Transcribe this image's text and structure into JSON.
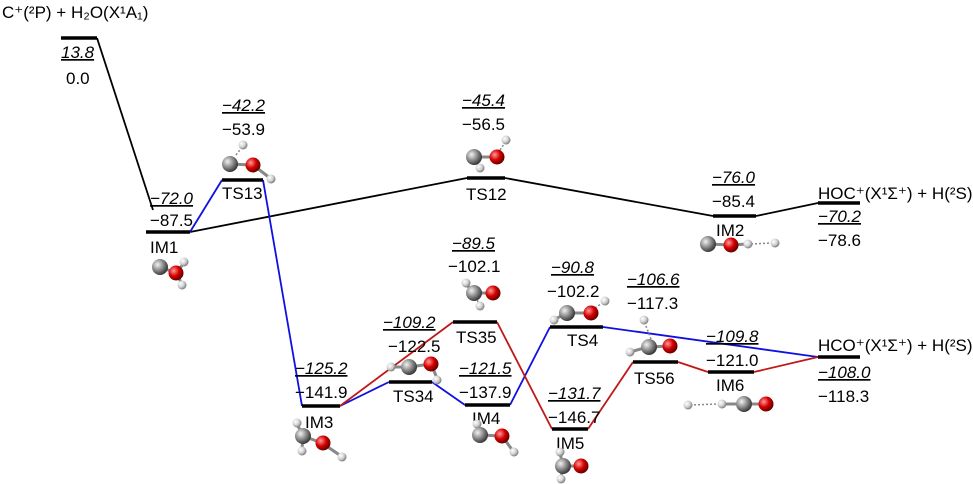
{
  "diagram": {
    "reactants_label": "C⁺(²P) + H₂O(X¹A₁)",
    "product_hoc_label": "HOC⁺(X¹Σ⁺) + H(²S)",
    "product_hco_label": "HCO⁺(X¹Σ⁺) + H(²S)",
    "species": [
      {
        "id": "reactants",
        "name": "",
        "upper": "13.8",
        "lower": "0.0"
      },
      {
        "id": "IM1",
        "name": "IM1",
        "upper": "−72.0",
        "lower": "−87.5"
      },
      {
        "id": "TS13",
        "name": "TS13",
        "upper": "−42.2",
        "lower": "−53.9"
      },
      {
        "id": "TS12",
        "name": "TS12",
        "upper": "−45.4",
        "lower": "−56.5"
      },
      {
        "id": "IM2",
        "name": "IM2",
        "upper": "−76.0",
        "lower": "−85.4"
      },
      {
        "id": "HOC",
        "name": "",
        "upper": "−70.2",
        "lower": "−78.6"
      },
      {
        "id": "IM3",
        "name": "IM3",
        "upper": "−125.2",
        "lower": "−141.9"
      },
      {
        "id": "TS34",
        "name": "TS34",
        "upper": "−109.2",
        "lower": "−122.5"
      },
      {
        "id": "TS35",
        "name": "TS35",
        "upper": "−89.5",
        "lower": "−102.1"
      },
      {
        "id": "IM4",
        "name": "IM4",
        "upper": "−121.5",
        "lower": "−137.9"
      },
      {
        "id": "IM5",
        "name": "IM5",
        "upper": "−131.7",
        "lower": "−146.7"
      },
      {
        "id": "TS4",
        "name": "TS4",
        "upper": "−90.8",
        "lower": "−102.2"
      },
      {
        "id": "TS56",
        "name": "TS56",
        "upper": "−106.6",
        "lower": "−117.3"
      },
      {
        "id": "IM6",
        "name": "IM6",
        "upper": "−109.8",
        "lower": "−121.0"
      },
      {
        "id": "HCO",
        "name": "",
        "upper": "−108.0",
        "lower": "−118.3"
      }
    ],
    "colors": {
      "black": "#000000",
      "blue": "#1010e0",
      "red": "#c01818",
      "carbon": "#8a8a8a",
      "oxygen": "#d10000",
      "hydrogen": "#d8d8d8"
    }
  }
}
